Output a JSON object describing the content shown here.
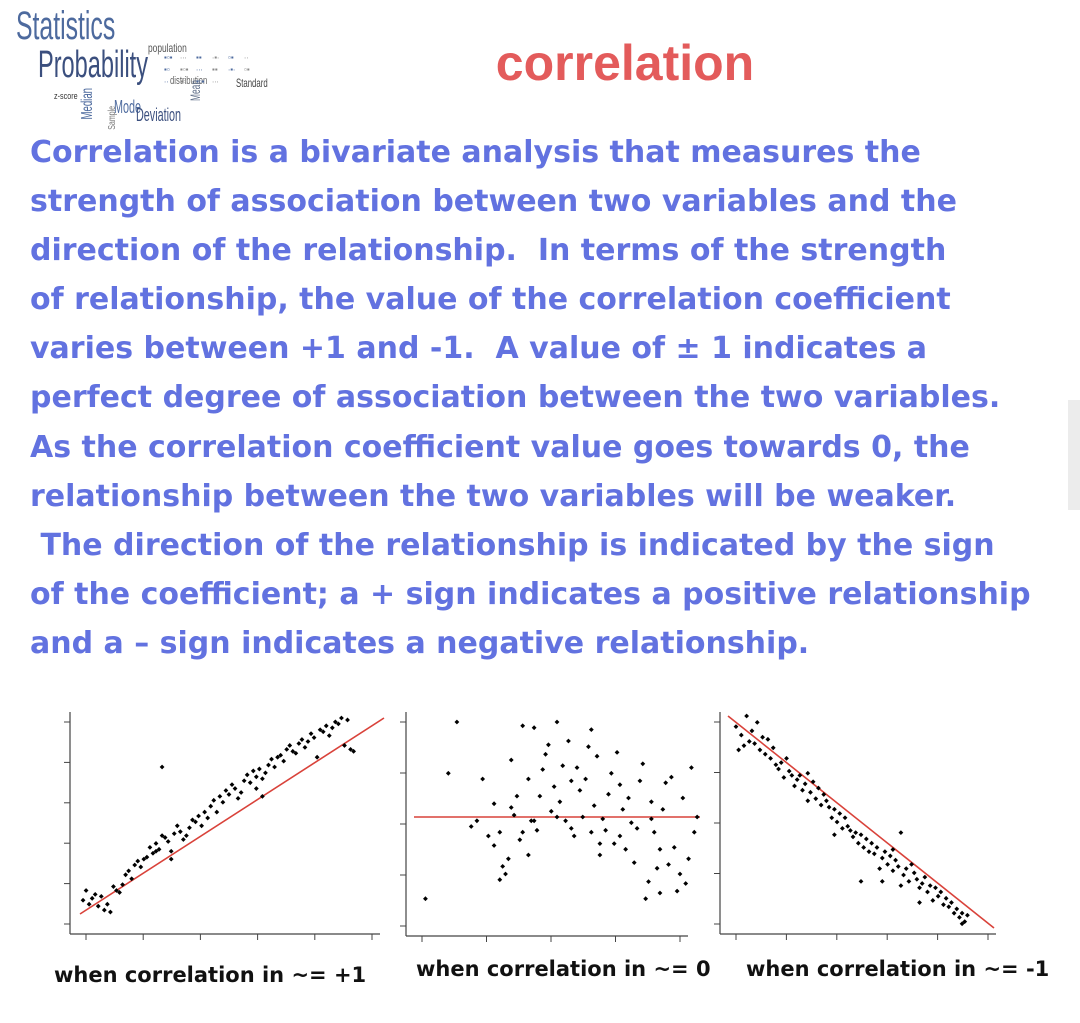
{
  "header": {
    "title": "correlation",
    "logo": {
      "words": [
        "Statistics",
        "Probability",
        "population",
        "distribution",
        "Standard",
        "Mode",
        "Deviation",
        "Median",
        "Mean",
        "Sample",
        "z-score"
      ]
    }
  },
  "body": {
    "lines": [
      "Correlation is a bivariate analysis that measures the",
      "strength of association between two variables and the",
      "direction of the relationship.  In terms of the strength",
      "of relationship, the value of the correlation coefficient",
      "varies between +1 and -1.  A value of ± 1 indicates a",
      "perfect degree of association between the two variables.",
      "As the correlation coefficient value goes towards 0, the",
      "relationship between the two variables will be weaker.",
      " The direction of the relationship is indicated by the sign",
      "of the coefficient; a + sign indicates a positive relationship",
      "and a – sign indicates a negative relationship."
    ]
  },
  "colors": {
    "title": "#e35b5b",
    "body_text": "#6272e0",
    "trend_line": "#d9423a",
    "points": "#000000",
    "logo_blue": "#4d6a9e"
  },
  "chart_data": [
    {
      "type": "scatter",
      "title": "",
      "caption": "when correlation in ~= +1",
      "xlim": [
        0,
        100
      ],
      "ylim": [
        0,
        100
      ],
      "trend": [
        [
          0,
          0
        ],
        [
          100,
          100
        ]
      ],
      "points": [
        [
          1,
          7
        ],
        [
          2,
          12
        ],
        [
          3,
          5
        ],
        [
          4,
          8
        ],
        [
          5,
          10
        ],
        [
          6,
          4
        ],
        [
          7,
          9
        ],
        [
          8,
          2
        ],
        [
          9,
          5
        ],
        [
          10,
          1
        ],
        [
          11,
          14
        ],
        [
          12,
          12
        ],
        [
          13,
          11
        ],
        [
          14,
          15
        ],
        [
          15,
          20
        ],
        [
          16,
          22
        ],
        [
          17,
          18
        ],
        [
          18,
          25
        ],
        [
          19,
          27
        ],
        [
          20,
          24
        ],
        [
          21,
          28
        ],
        [
          22,
          29
        ],
        [
          23,
          34
        ],
        [
          24,
          31
        ],
        [
          25,
          36
        ],
        [
          26,
          33
        ],
        [
          27,
          40
        ],
        [
          28,
          39
        ],
        [
          29,
          37
        ],
        [
          30,
          32
        ],
        [
          31,
          41
        ],
        [
          32,
          45
        ],
        [
          33,
          42
        ],
        [
          34,
          38
        ],
        [
          35,
          40
        ],
        [
          36,
          44
        ],
        [
          37,
          48
        ],
        [
          38,
          47
        ],
        [
          39,
          50
        ],
        [
          40,
          45
        ],
        [
          41,
          52
        ],
        [
          42,
          49
        ],
        [
          43,
          55
        ],
        [
          44,
          58
        ],
        [
          45,
          52
        ],
        [
          46,
          60
        ],
        [
          47,
          57
        ],
        [
          48,
          63
        ],
        [
          49,
          61
        ],
        [
          50,
          66
        ],
        [
          51,
          64
        ],
        [
          52,
          59
        ],
        [
          53,
          62
        ],
        [
          54,
          68
        ],
        [
          55,
          71
        ],
        [
          56,
          67
        ],
        [
          57,
          73
        ],
        [
          58,
          70
        ],
        [
          59,
          74
        ],
        [
          60,
          69
        ],
        [
          61,
          72
        ],
        [
          62,
          76
        ],
        [
          63,
          79
        ],
        [
          64,
          75
        ],
        [
          65,
          80
        ],
        [
          66,
          81
        ],
        [
          67,
          78
        ],
        [
          68,
          84
        ],
        [
          69,
          86
        ],
        [
          70,
          83
        ],
        [
          71,
          82
        ],
        [
          72,
          87
        ],
        [
          73,
          89
        ],
        [
          74,
          85
        ],
        [
          75,
          88
        ],
        [
          76,
          92
        ],
        [
          77,
          90
        ],
        [
          78,
          80
        ],
        [
          79,
          94
        ],
        [
          80,
          93
        ],
        [
          81,
          96
        ],
        [
          82,
          91
        ],
        [
          83,
          95
        ],
        [
          84,
          98
        ],
        [
          85,
          97
        ],
        [
          86,
          100
        ],
        [
          87,
          86
        ],
        [
          88,
          99
        ],
        [
          89,
          84
        ],
        [
          90,
          83
        ],
        [
          27,
          75
        ],
        [
          30,
          28
        ],
        [
          25,
          32
        ],
        [
          60,
          60
        ],
        [
          58,
          64
        ]
      ]
    },
    {
      "type": "scatter",
      "title": "",
      "caption": "when correlation in ~= 0",
      "xlim": [
        0,
        100
      ],
      "ylim": [
        0,
        100
      ],
      "trend": [
        [
          0,
          50
        ],
        [
          100,
          50
        ]
      ],
      "points": [
        [
          4,
          7
        ],
        [
          12,
          73
        ],
        [
          20,
          45
        ],
        [
          22,
          48
        ],
        [
          24,
          70
        ],
        [
          26,
          40
        ],
        [
          28,
          35
        ],
        [
          28,
          57
        ],
        [
          30,
          17
        ],
        [
          31,
          24
        ],
        [
          32,
          20
        ],
        [
          33,
          28
        ],
        [
          34,
          55
        ],
        [
          34,
          80
        ],
        [
          35,
          51
        ],
        [
          36,
          61
        ],
        [
          37,
          38
        ],
        [
          38,
          42
        ],
        [
          40,
          70
        ],
        [
          41,
          48
        ],
        [
          42,
          48
        ],
        [
          43,
          43
        ],
        [
          44,
          61
        ],
        [
          45,
          75
        ],
        [
          46,
          83
        ],
        [
          47,
          88
        ],
        [
          48,
          53
        ],
        [
          49,
          66
        ],
        [
          50,
          50
        ],
        [
          51,
          58
        ],
        [
          52,
          77
        ],
        [
          53,
          48
        ],
        [
          54,
          90
        ],
        [
          55,
          69
        ],
        [
          56,
          40
        ],
        [
          57,
          76
        ],
        [
          58,
          64
        ],
        [
          59,
          50
        ],
        [
          60,
          70
        ],
        [
          61,
          87
        ],
        [
          62,
          42
        ],
        [
          63,
          56
        ],
        [
          64,
          82
        ],
        [
          65,
          30
        ],
        [
          66,
          49
        ],
        [
          67,
          43
        ],
        [
          68,
          62
        ],
        [
          69,
          73
        ],
        [
          70,
          36
        ],
        [
          71,
          84
        ],
        [
          72,
          67
        ],
        [
          73,
          54
        ],
        [
          74,
          33
        ],
        [
          75,
          60
        ],
        [
          76,
          47
        ],
        [
          77,
          26
        ],
        [
          78,
          44
        ],
        [
          79,
          69
        ],
        [
          80,
          78
        ],
        [
          81,
          7
        ],
        [
          82,
          16
        ],
        [
          83,
          58
        ],
        [
          84,
          42
        ],
        [
          85,
          23
        ],
        [
          86,
          33
        ],
        [
          87,
          54
        ],
        [
          88,
          68
        ],
        [
          89,
          25
        ],
        [
          90,
          71
        ],
        [
          91,
          34
        ],
        [
          92,
          11
        ],
        [
          93,
          20
        ],
        [
          94,
          60
        ],
        [
          95,
          15
        ],
        [
          96,
          28
        ],
        [
          97,
          76
        ],
        [
          98,
          42
        ],
        [
          99,
          50
        ],
        [
          42,
          97
        ],
        [
          50,
          100
        ],
        [
          15,
          100
        ],
        [
          38,
          98
        ],
        [
          62,
          96
        ],
        [
          86,
          10
        ],
        [
          72,
          40
        ],
        [
          30,
          42
        ],
        [
          65,
          36
        ],
        [
          40,
          30
        ],
        [
          55,
          44
        ],
        [
          83,
          49
        ]
      ]
    },
    {
      "type": "scatter",
      "title": "",
      "caption": "when correlation in ~= -1",
      "xlim": [
        0,
        100
      ],
      "ylim": [
        0,
        100
      ],
      "trend": [
        [
          0,
          100
        ],
        [
          100,
          0
        ]
      ],
      "points": [
        [
          3,
          95
        ],
        [
          4,
          84
        ],
        [
          5,
          91
        ],
        [
          6,
          86
        ],
        [
          7,
          100
        ],
        [
          8,
          88
        ],
        [
          9,
          93
        ],
        [
          10,
          87
        ],
        [
          11,
          97
        ],
        [
          12,
          84
        ],
        [
          13,
          90
        ],
        [
          14,
          82
        ],
        [
          15,
          89
        ],
        [
          16,
          80
        ],
        [
          17,
          85
        ],
        [
          18,
          77
        ],
        [
          19,
          75
        ],
        [
          20,
          78
        ],
        [
          21,
          71
        ],
        [
          22,
          80
        ],
        [
          23,
          74
        ],
        [
          24,
          72
        ],
        [
          25,
          67
        ],
        [
          26,
          70
        ],
        [
          27,
          72
        ],
        [
          28,
          65
        ],
        [
          29,
          68
        ],
        [
          30,
          73
        ],
        [
          31,
          64
        ],
        [
          32,
          69
        ],
        [
          33,
          61
        ],
        [
          34,
          66
        ],
        [
          35,
          58
        ],
        [
          36,
          63
        ],
        [
          37,
          60
        ],
        [
          38,
          57
        ],
        [
          39,
          52
        ],
        [
          40,
          56
        ],
        [
          41,
          50
        ],
        [
          42,
          54
        ],
        [
          43,
          47
        ],
        [
          44,
          52
        ],
        [
          45,
          48
        ],
        [
          46,
          46
        ],
        [
          47,
          43
        ],
        [
          48,
          45
        ],
        [
          49,
          40
        ],
        [
          50,
          44
        ],
        [
          51,
          38
        ],
        [
          52,
          42
        ],
        [
          53,
          36
        ],
        [
          54,
          40
        ],
        [
          55,
          35
        ],
        [
          56,
          38
        ],
        [
          57,
          28
        ],
        [
          58,
          33
        ],
        [
          59,
          36
        ],
        [
          60,
          30
        ],
        [
          61,
          34
        ],
        [
          62,
          27
        ],
        [
          63,
          32
        ],
        [
          64,
          29
        ],
        [
          65,
          20
        ],
        [
          66,
          25
        ],
        [
          67,
          28
        ],
        [
          68,
          22
        ],
        [
          69,
          30
        ],
        [
          70,
          26
        ],
        [
          71,
          23
        ],
        [
          72,
          19
        ],
        [
          73,
          21
        ],
        [
          74,
          24
        ],
        [
          75,
          17
        ],
        [
          76,
          20
        ],
        [
          77,
          13
        ],
        [
          78,
          19
        ],
        [
          79,
          15
        ],
        [
          80,
          17
        ],
        [
          81,
          11
        ],
        [
          82,
          14
        ],
        [
          83,
          10
        ],
        [
          84,
          12
        ],
        [
          85,
          7
        ],
        [
          86,
          9
        ],
        [
          87,
          5
        ],
        [
          88,
          7
        ],
        [
          89,
          3
        ],
        [
          90,
          6
        ],
        [
          88,
          2
        ],
        [
          65,
          45
        ],
        [
          58,
          22
        ],
        [
          72,
          12
        ],
        [
          40,
          44
        ],
        [
          30,
          60
        ],
        [
          50,
          22
        ],
        [
          62,
          37
        ]
      ]
    }
  ]
}
